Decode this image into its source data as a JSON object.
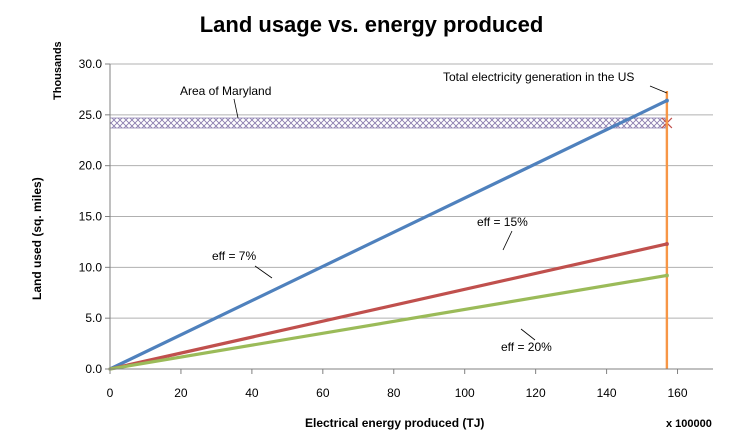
{
  "chart_data": {
    "type": "line",
    "title": "Land usage vs. energy produced",
    "xlabel": "Electrical energy produced (TJ)",
    "x_unit_multiplier": "x 100000",
    "ylabel": "Land used (sq. miles)",
    "y_unit_label": "Thousands",
    "xlim": [
      0,
      170
    ],
    "ylim": [
      0,
      30
    ],
    "x_ticks": [
      "0",
      "20",
      "40",
      "60",
      "80",
      "100",
      "120",
      "140",
      "160"
    ],
    "x_tick_values": [
      0,
      20,
      40,
      60,
      80,
      100,
      120,
      140,
      160
    ],
    "y_ticks": [
      "0.0",
      "5.0",
      "10.0",
      "15.0",
      "20.0",
      "25.0",
      "30.0"
    ],
    "y_tick_values": [
      0,
      5,
      10,
      15,
      20,
      25,
      30
    ],
    "grid": "horizontal",
    "series": [
      {
        "label": "eff = 7%",
        "color": "#4f81bd",
        "x": [
          0,
          157
        ],
        "y": [
          0,
          26.4
        ]
      },
      {
        "label": "eff = 15%",
        "color": "#c0504d",
        "x": [
          0,
          157
        ],
        "y": [
          0,
          12.3
        ]
      },
      {
        "label": "eff = 20%",
        "color": "#9bbb59",
        "x": [
          0,
          157
        ],
        "y": [
          0,
          9.2
        ]
      }
    ],
    "reference_lines": [
      {
        "label": "Area of Maryland",
        "orientation": "horizontal",
        "value": 24.2,
        "color": "#8064a2"
      },
      {
        "label": "Total electricity generation in the US",
        "orientation": "vertical",
        "value": 157,
        "color": "#f79646"
      }
    ]
  }
}
